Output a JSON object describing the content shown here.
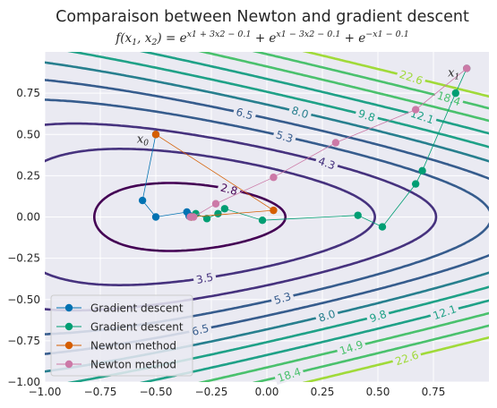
{
  "chart_data": {
    "type": "line",
    "title": "Comparaison between Newton and gradient descent",
    "subtitle": "f(x1, x2) = e^(x1 + 3x2 − 0.1) + e^(x1 − 3x2 − 0.1) + e^(−x1 − 0.1)",
    "xlabel": "",
    "ylabel": "",
    "xlim": [
      -1.0,
      1.0
    ],
    "ylim": [
      -1.0,
      1.0
    ],
    "xticks": [
      "−1.00",
      "−0.75",
      "−0.50",
      "−0.25",
      "0.00",
      "0.25",
      "0.50",
      "0.75"
    ],
    "yticks": [
      "0.75",
      "0.50",
      "0.25",
      "0.00",
      "−0.25",
      "−0.50",
      "−0.75",
      "−1.00"
    ],
    "grid": true,
    "legend_position": "bottom-left",
    "colors": {
      "background": "#eaeaf2",
      "grid": "#ffffff",
      "gd1": "#0072b2",
      "gd2": "#009e73",
      "newton1": "#d55e00",
      "newton2": "#cc79a7"
    },
    "contour_levels": [
      "2.8",
      "3.5",
      "4.3",
      "5.3",
      "6.5",
      "8.0",
      "9.8",
      "12.1",
      "14.9",
      "18.4",
      "22.6"
    ],
    "series": [
      {
        "name": "Gradient descent",
        "color": "#0072b2",
        "x": [
          -0.5,
          -0.56,
          -0.5,
          -0.36,
          -0.35,
          -0.35,
          -0.345
        ],
        "y": [
          0.5,
          0.1,
          0.0,
          0.03,
          0.01,
          0.005,
          0.003
        ]
      },
      {
        "name": "Gradient descent",
        "color": "#009e73",
        "x": [
          0.9,
          0.85,
          0.7,
          0.67,
          0.52,
          0.41,
          -0.02,
          -0.19,
          -0.22,
          -0.27,
          -0.32,
          -0.34
        ],
        "y": [
          0.9,
          0.75,
          0.28,
          0.2,
          -0.06,
          0.01,
          -0.02,
          0.05,
          0.02,
          -0.01,
          0.02,
          0.0
        ]
      },
      {
        "name": "Newton method",
        "color": "#d55e00",
        "x": [
          -0.5,
          0.03,
          -0.34
        ],
        "y": [
          0.5,
          0.04,
          0.0
        ]
      },
      {
        "name": "Newton method",
        "color": "#cc79a7",
        "x": [
          0.9,
          0.67,
          0.31,
          0.03,
          -0.23,
          -0.33,
          -0.345
        ],
        "y": [
          0.9,
          0.65,
          0.45,
          0.24,
          0.08,
          0.0,
          0.0
        ]
      }
    ],
    "annotations": [
      {
        "text": "x0",
        "x": -0.5,
        "y": 0.5
      },
      {
        "text": "x1",
        "x": 0.9,
        "y": 0.9
      }
    ]
  }
}
